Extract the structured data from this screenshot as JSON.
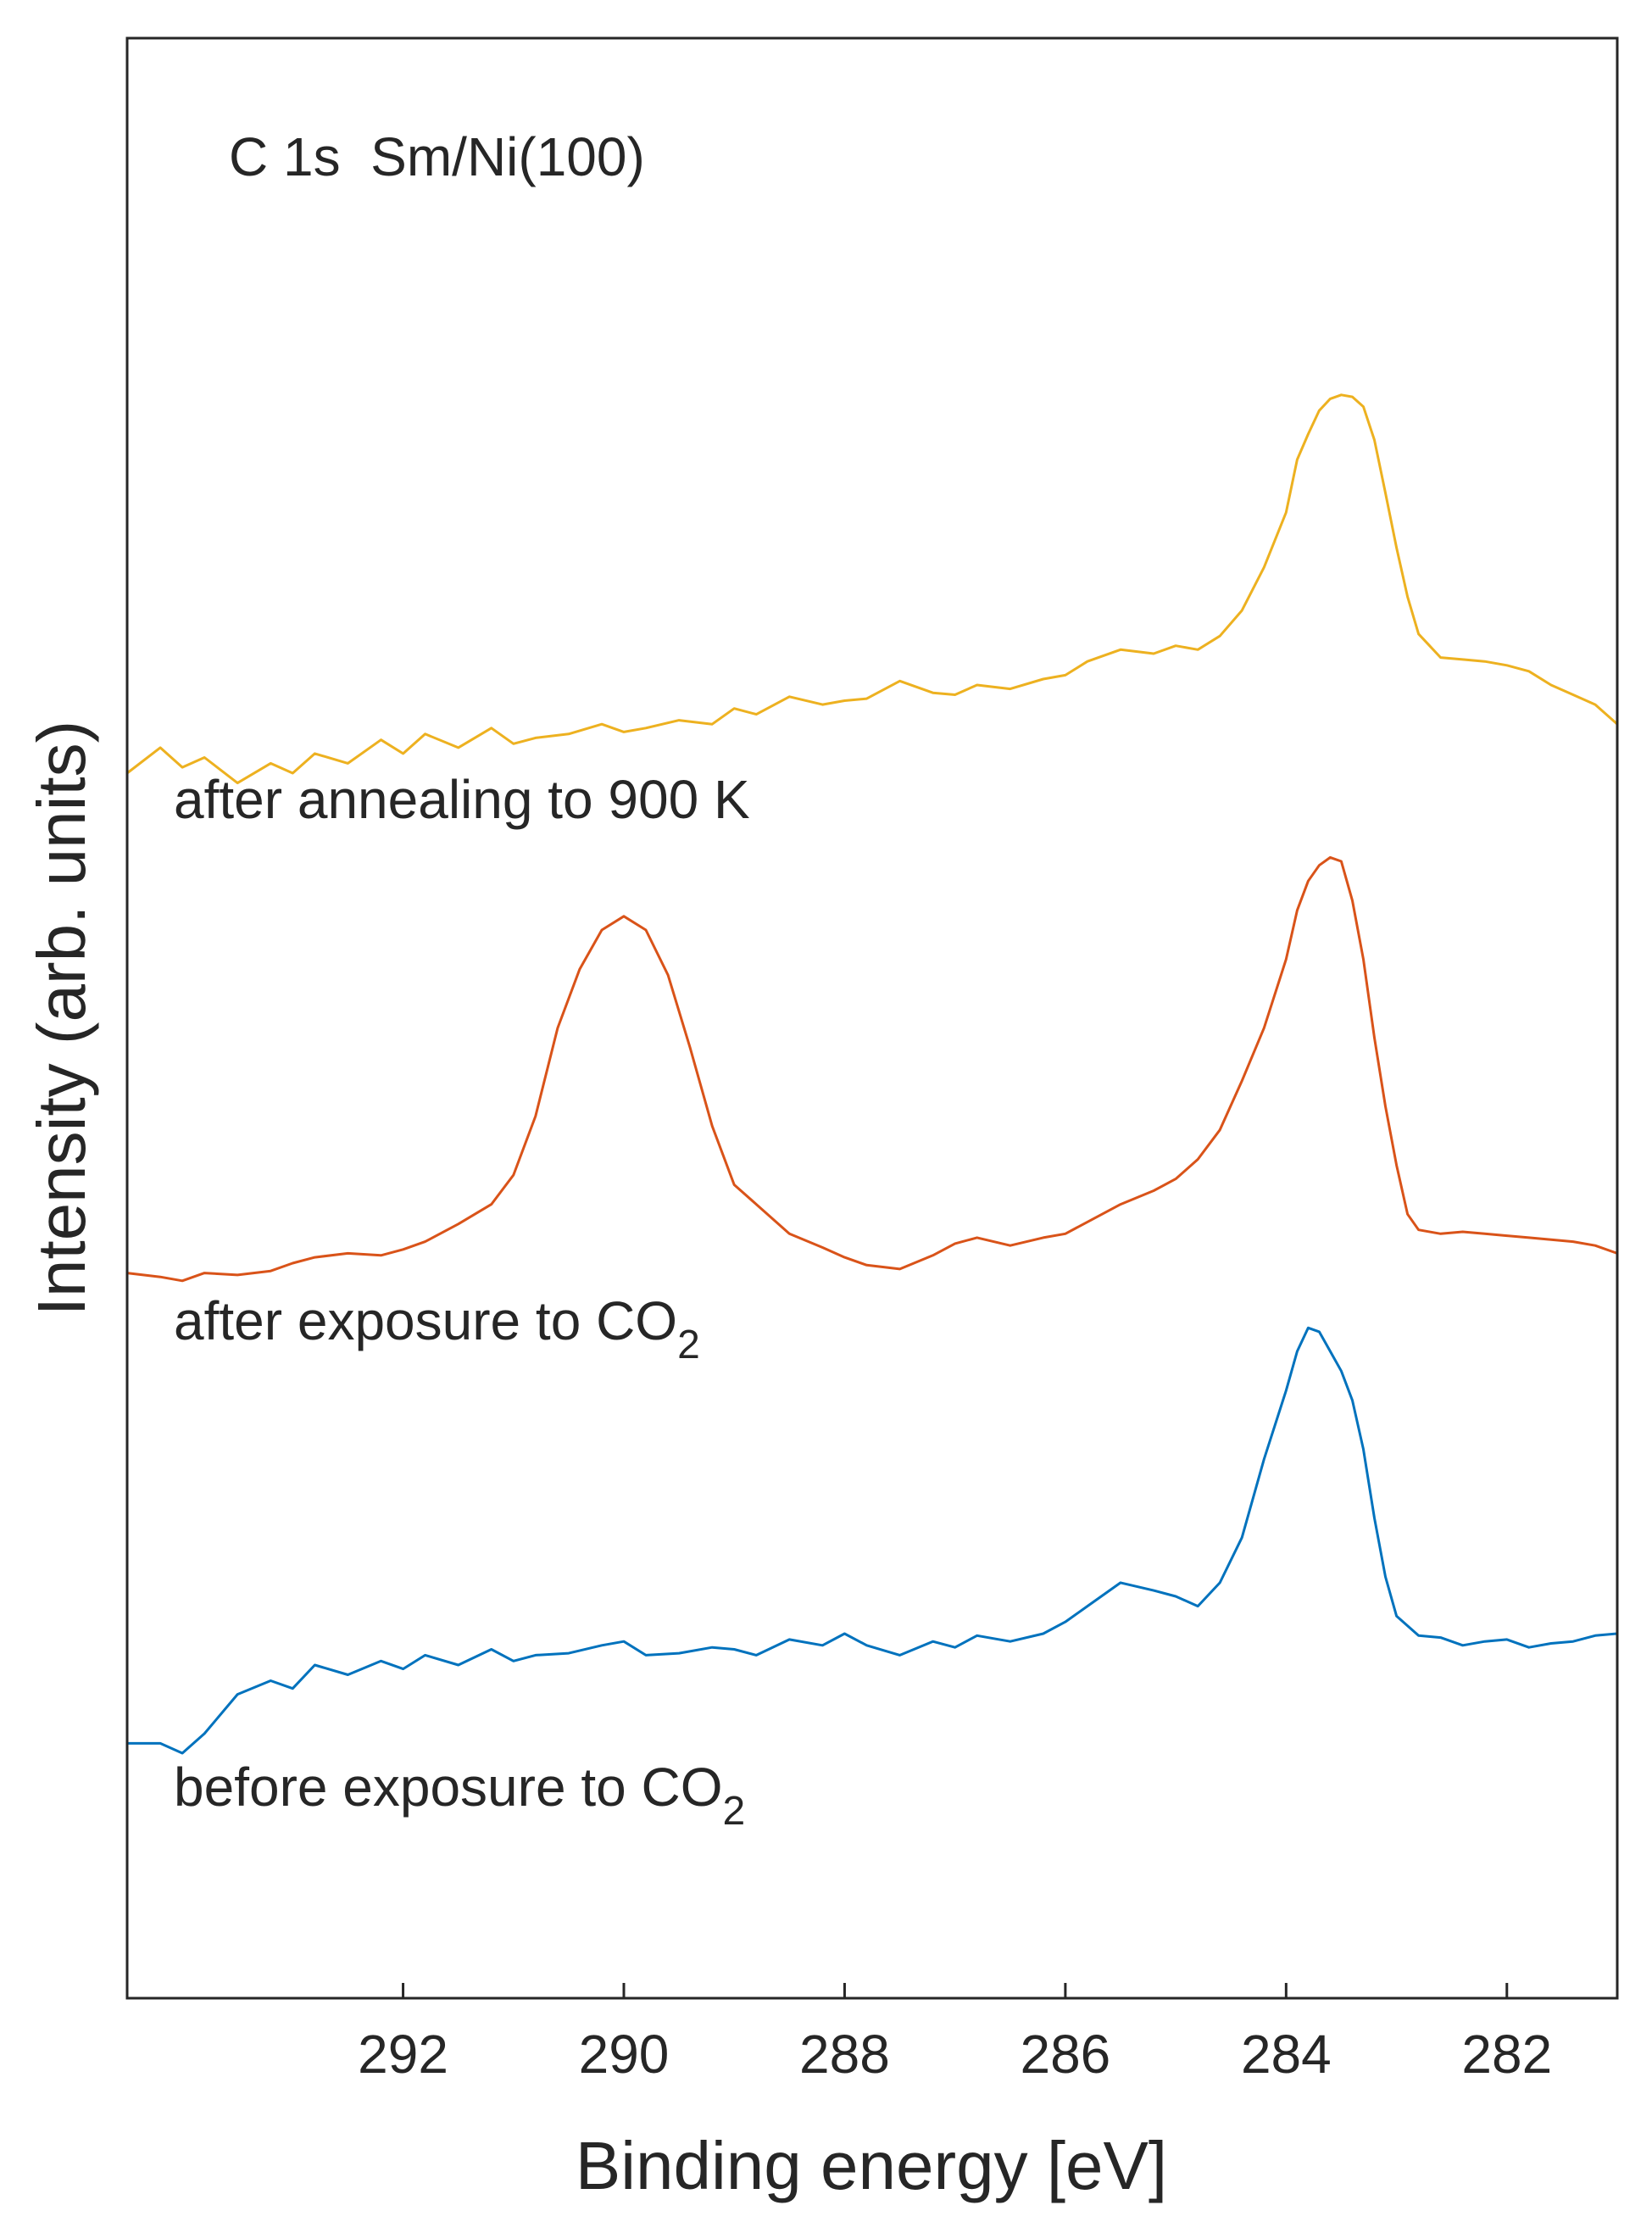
{
  "chart_data": {
    "type": "line",
    "title": "C 1s  Sm/Ni(100)",
    "xlabel": "Binding energy [eV]",
    "ylabel": "Intensity (arb. units)",
    "xlim": [
      294.5,
      281
    ],
    "x_reversed": true,
    "ylim": [
      0,
      10
    ],
    "y_ticks_shown": false,
    "xticks": [
      292,
      290,
      288,
      286,
      284,
      282
    ],
    "xtick_labels": [
      "292",
      "290",
      "288",
      "286",
      "284",
      "282"
    ],
    "grid": false,
    "series": [
      {
        "name": "after annealing to 900 K",
        "label_main": "after annealing to 900 K",
        "label_sub": "",
        "color": "#EDB120",
        "x": [
          294.5,
          294.2,
          294.0,
          293.8,
          293.5,
          293.2,
          293.0,
          292.8,
          292.5,
          292.2,
          292.0,
          291.8,
          291.5,
          291.2,
          291.0,
          290.8,
          290.5,
          290.2,
          290.0,
          289.8,
          289.5,
          289.2,
          289.0,
          288.8,
          288.5,
          288.2,
          288.0,
          287.8,
          287.5,
          287.2,
          287.0,
          286.8,
          286.5,
          286.2,
          286.0,
          285.8,
          285.5,
          285.2,
          285.0,
          284.8,
          284.6,
          284.4,
          284.2,
          284.0,
          283.9,
          283.8,
          283.7,
          283.6,
          283.5,
          283.4,
          283.3,
          283.2,
          283.1,
          283.0,
          282.9,
          282.8,
          282.7,
          282.6,
          282.4,
          282.2,
          282.0,
          281.8,
          281.6,
          281.4,
          281.2,
          281.0
        ],
        "y": [
          6.25,
          6.38,
          6.28,
          6.33,
          6.2,
          6.3,
          6.25,
          6.35,
          6.3,
          6.42,
          6.35,
          6.45,
          6.38,
          6.48,
          6.4,
          6.43,
          6.45,
          6.5,
          6.46,
          6.48,
          6.52,
          6.5,
          6.58,
          6.55,
          6.64,
          6.6,
          6.62,
          6.63,
          6.72,
          6.66,
          6.65,
          6.7,
          6.68,
          6.73,
          6.75,
          6.82,
          6.88,
          6.86,
          6.9,
          6.88,
          6.95,
          7.08,
          7.3,
          7.58,
          7.85,
          7.98,
          8.1,
          8.16,
          8.18,
          8.17,
          8.12,
          7.95,
          7.68,
          7.4,
          7.15,
          6.96,
          6.9,
          6.84,
          6.83,
          6.82,
          6.8,
          6.77,
          6.7,
          6.65,
          6.6,
          6.5
        ]
      },
      {
        "name": "after exposure to CO2",
        "label_main": "after exposure to CO",
        "label_sub": "2",
        "color": "#D95319",
        "x": [
          294.5,
          294.2,
          294.0,
          293.8,
          293.5,
          293.2,
          293.0,
          292.8,
          292.5,
          292.2,
          292.0,
          291.8,
          291.5,
          291.2,
          291.0,
          290.8,
          290.6,
          290.4,
          290.2,
          290.0,
          289.8,
          289.6,
          289.4,
          289.2,
          289.0,
          288.8,
          288.5,
          288.2,
          288.0,
          287.8,
          287.5,
          287.2,
          287.0,
          286.8,
          286.5,
          286.2,
          286.0,
          285.8,
          285.5,
          285.2,
          285.0,
          284.8,
          284.6,
          284.4,
          284.2,
          284.0,
          283.9,
          283.8,
          283.7,
          283.6,
          283.5,
          283.4,
          283.3,
          283.2,
          283.1,
          283.0,
          282.9,
          282.8,
          282.6,
          282.4,
          282.2,
          282.0,
          281.8,
          281.6,
          281.4,
          281.2,
          281.0
        ],
        "y": [
          3.7,
          3.68,
          3.66,
          3.7,
          3.69,
          3.71,
          3.75,
          3.78,
          3.8,
          3.79,
          3.82,
          3.86,
          3.95,
          4.05,
          4.2,
          4.5,
          4.95,
          5.25,
          5.45,
          5.52,
          5.45,
          5.22,
          4.85,
          4.45,
          4.15,
          4.05,
          3.9,
          3.83,
          3.78,
          3.74,
          3.72,
          3.79,
          3.85,
          3.88,
          3.84,
          3.88,
          3.9,
          3.96,
          4.05,
          4.12,
          4.18,
          4.28,
          4.43,
          4.68,
          4.95,
          5.3,
          5.55,
          5.7,
          5.78,
          5.82,
          5.8,
          5.6,
          5.3,
          4.9,
          4.55,
          4.25,
          4.0,
          3.92,
          3.9,
          3.91,
          3.9,
          3.89,
          3.88,
          3.87,
          3.86,
          3.84,
          3.8
        ]
      },
      {
        "name": "before exposure to CO2",
        "label_main": "before exposure to CO",
        "label_sub": "2",
        "color": "#0072BD",
        "x": [
          294.5,
          294.2,
          294.0,
          293.8,
          293.5,
          293.2,
          293.0,
          292.8,
          292.5,
          292.2,
          292.0,
          291.8,
          291.5,
          291.2,
          291.0,
          290.8,
          290.5,
          290.2,
          290.0,
          289.8,
          289.5,
          289.2,
          289.0,
          288.8,
          288.5,
          288.2,
          288.0,
          287.8,
          287.5,
          287.2,
          287.0,
          286.8,
          286.5,
          286.2,
          286.0,
          285.8,
          285.5,
          285.2,
          285.0,
          284.8,
          284.6,
          284.4,
          284.2,
          284.0,
          283.9,
          283.8,
          283.7,
          283.6,
          283.5,
          283.4,
          283.3,
          283.2,
          283.1,
          283.0,
          282.9,
          282.8,
          282.6,
          282.4,
          282.2,
          282.0,
          281.8,
          281.6,
          281.4,
          281.2,
          281.0
        ],
        "y": [
          1.3,
          1.3,
          1.25,
          1.35,
          1.55,
          1.62,
          1.58,
          1.7,
          1.65,
          1.72,
          1.68,
          1.75,
          1.7,
          1.78,
          1.72,
          1.75,
          1.76,
          1.8,
          1.82,
          1.75,
          1.76,
          1.79,
          1.78,
          1.75,
          1.83,
          1.8,
          1.86,
          1.8,
          1.75,
          1.82,
          1.79,
          1.85,
          1.82,
          1.86,
          1.92,
          2.0,
          2.12,
          2.08,
          2.05,
          2.0,
          2.12,
          2.35,
          2.75,
          3.1,
          3.3,
          3.42,
          3.4,
          3.3,
          3.2,
          3.05,
          2.8,
          2.45,
          2.15,
          1.95,
          1.9,
          1.85,
          1.84,
          1.8,
          1.82,
          1.83,
          1.79,
          1.81,
          1.82,
          1.85,
          1.86
        ]
      }
    ]
  }
}
